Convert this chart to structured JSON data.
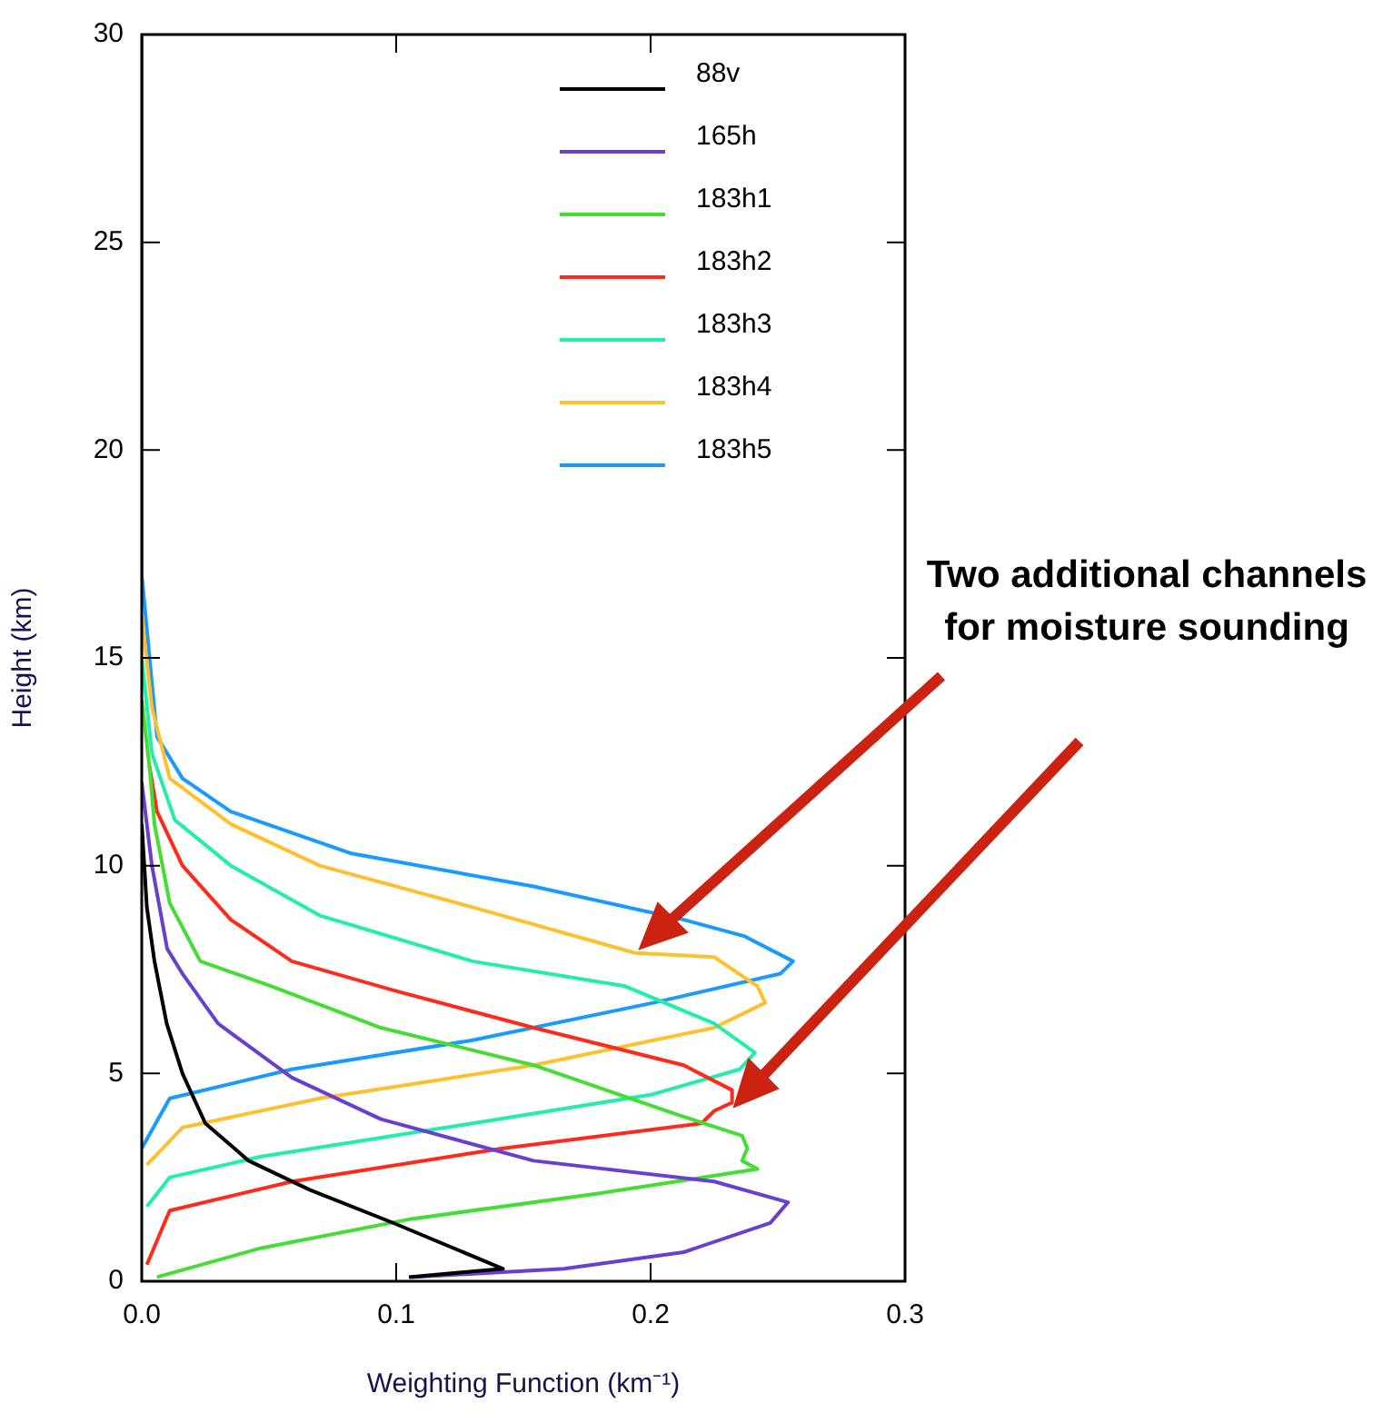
{
  "chart_data": {
    "type": "line",
    "xlabel": "Weighting Function (km⁻¹)",
    "ylabel": "Height (km)",
    "xlim": [
      0,
      0.3
    ],
    "xticks": [
      {
        "value": 0,
        "label": "0.0"
      },
      0.1,
      0.2,
      0.3
    ],
    "ylim": [
      0,
      30
    ],
    "yticks": [
      0,
      5,
      10,
      15,
      20,
      25,
      30
    ],
    "grid": false,
    "legend": "top right",
    "marker": "none",
    "line_style": "solid",
    "annotations": [
      "Two additional channels\nfor moisture sounding"
    ],
    "series": [
      {
        "name": "88v",
        "color": "#000000",
        "x": [
          0.105,
          0.142,
          0.099,
          0.066,
          0.042,
          0.025,
          0.016,
          0.0098,
          0.005,
          0.002,
          0.001,
          0
        ],
        "values": [
          0.1,
          0.3,
          1.4,
          2.2,
          2.9,
          3.8,
          5,
          6.2,
          7.7,
          9,
          10,
          11
        ]
      },
      {
        "name": "165h",
        "color": "#6a3fd0",
        "x": [
          0.106,
          0.166,
          0.213,
          0.247,
          0.254,
          0.225,
          0.154,
          0.094,
          0.059,
          0.03,
          0.016,
          0.01,
          0.007,
          0.004,
          0.002,
          0
        ],
        "values": [
          0.1,
          0.3,
          0.7,
          1.4,
          1.9,
          2.4,
          2.9,
          3.9,
          4.9,
          6.2,
          7.4,
          8,
          9,
          10,
          11,
          12
        ]
      },
      {
        "name": "183h1",
        "color": "#44dd33",
        "x": [
          0.006,
          0.047,
          0.106,
          0.178,
          0.242,
          0.236,
          0.238,
          0.236,
          0.211,
          0.154,
          0.094,
          0.051,
          0.023,
          0.011,
          0.005,
          0.003,
          0
        ],
        "values": [
          0.1,
          0.8,
          1.5,
          2.1,
          2.7,
          2.9,
          3.2,
          3.5,
          4,
          5.2,
          6.1,
          7.1,
          7.7,
          9.1,
          11,
          12.4,
          14
        ]
      },
      {
        "name": "183h2",
        "color": "#ff2a1a",
        "x": [
          0.002,
          0.011,
          0.059,
          0.142,
          0.22,
          0.225,
          0.232,
          0.232,
          0.213,
          0.154,
          0.099,
          0.059,
          0.035,
          0.016,
          0.006,
          0.003
        ],
        "values": [
          0.4,
          1.7,
          2.4,
          3.2,
          3.8,
          4.1,
          4.3,
          4.6,
          5.2,
          6.1,
          7,
          7.7,
          8.7,
          10,
          11.3,
          12.4
        ]
      },
      {
        "name": "183h3",
        "color": "#22eeaa",
        "x": [
          0.002,
          0.011,
          0.047,
          0.13,
          0.201,
          0.235,
          0.241,
          0.225,
          0.19,
          0.13,
          0.07,
          0.035,
          0.013,
          0.004,
          0
        ],
        "values": [
          1.8,
          2.5,
          3,
          3.8,
          4.5,
          5.1,
          5.5,
          6.2,
          7.1,
          7.7,
          8.8,
          10,
          11.1,
          12.7,
          15
        ]
      },
      {
        "name": "183h4",
        "color": "#ffc030",
        "x": [
          0.002,
          0.016,
          0.07,
          0.154,
          0.225,
          0.245,
          0.242,
          0.225,
          0.194,
          0.13,
          0.07,
          0.035,
          0.011,
          0.004,
          0
        ],
        "values": [
          2.8,
          3.7,
          4.4,
          5.2,
          6.1,
          6.7,
          7.1,
          7.8,
          7.9,
          9,
          10,
          11,
          12.1,
          13.8,
          16
        ]
      },
      {
        "name": "183h5",
        "color": "#1a9aff",
        "x": [
          0,
          0.011,
          0.059,
          0.13,
          0.201,
          0.251,
          0.256,
          0.237,
          0.213,
          0.154,
          0.082,
          0.035,
          0.016,
          0.006,
          0,
          0
        ],
        "values": [
          3.2,
          4.4,
          5.1,
          5.8,
          6.7,
          7.4,
          7.7,
          8.3,
          8.7,
          9.5,
          10.3,
          11.3,
          12.1,
          13.1,
          17,
          30
        ]
      }
    ]
  }
}
